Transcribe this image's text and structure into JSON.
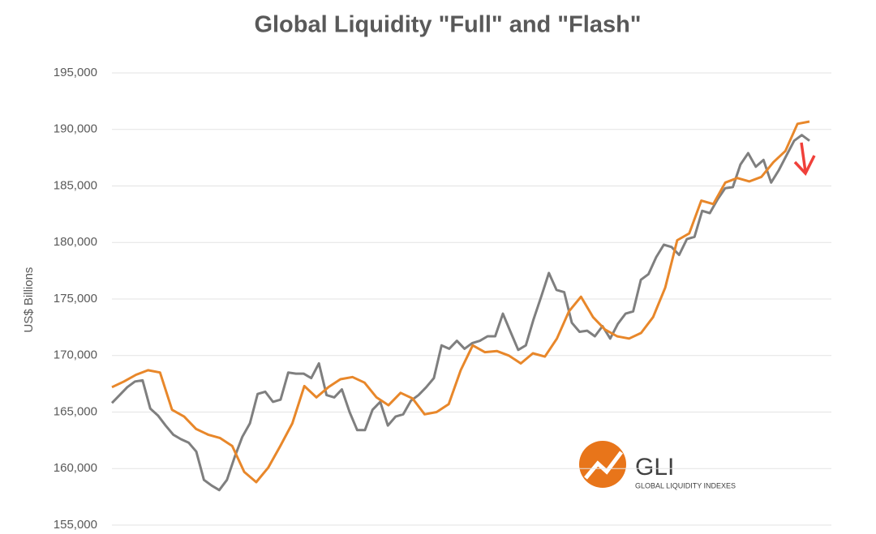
{
  "chart_data": {
    "type": "line",
    "title": "Global Liquidity \"Full\" and \"Flash\"",
    "y_label": "US$ Billions",
    "logo_text": "GLI",
    "logo_subtext": "GLOBAL LIQUIDITY INDEXES",
    "ylim": [
      155000,
      195000
    ],
    "yticks": [
      {
        "value": 155000,
        "label": "155,000"
      },
      {
        "value": 160000,
        "label": "160,000"
      },
      {
        "value": 165000,
        "label": "165,000"
      },
      {
        "value": 170000,
        "label": "170,000"
      },
      {
        "value": 175000,
        "label": "175,000"
      },
      {
        "value": 180000,
        "label": "180,000"
      },
      {
        "value": 185000,
        "label": "185,000"
      },
      {
        "value": 190000,
        "label": "190,000"
      },
      {
        "value": 195000,
        "label": "195,000"
      }
    ],
    "grid": true,
    "series": [
      {
        "color": "#7f7f7f",
        "values": [
          165800,
          166500,
          167200,
          167700,
          167800,
          165300,
          164700,
          163800,
          163000,
          162600,
          162300,
          161500,
          159000,
          158500,
          158100,
          159000,
          161000,
          162800,
          164000,
          166600,
          166800,
          165900,
          166100,
          168500,
          168400,
          168400,
          168000,
          169300,
          166500,
          166300,
          167000,
          165000,
          163400,
          163400,
          165200,
          165900,
          163800,
          164600,
          164800,
          166000,
          166500,
          167200,
          168000,
          170900,
          170600,
          171300,
          170600,
          171100,
          171300,
          171700,
          171700,
          173700,
          172100,
          170500,
          170900,
          173200,
          175200,
          177300,
          175800,
          175600,
          172900,
          172100,
          172200,
          171700,
          172600,
          171500,
          172800,
          173700,
          173900,
          176700,
          177200,
          178700,
          179800,
          179600,
          178900,
          180300,
          180500,
          182800,
          182600,
          183800,
          184800,
          184900,
          186900,
          187900,
          186700,
          187300,
          185300,
          186400,
          187700,
          189000,
          189500,
          189000
        ]
      },
      {
        "color": "#e8872a",
        "values": [
          167200,
          167700,
          168300,
          168700,
          168500,
          165200,
          164600,
          163500,
          163000,
          162700,
          162000,
          159700,
          158800,
          160100,
          162000,
          164000,
          167300,
          166300,
          167200,
          167900,
          168100,
          167600,
          166300,
          165600,
          166700,
          166200,
          164800,
          165000,
          165700,
          168700,
          170900,
          170300,
          170400,
          170000,
          169300,
          170200,
          169900,
          171500,
          173900,
          175200,
          173400,
          172300,
          171700,
          171500,
          172000,
          173400,
          176000,
          180200,
          180800,
          183700,
          183400,
          185300,
          185700,
          185400,
          185800,
          187100,
          188100,
          190500,
          190700
        ]
      }
    ]
  }
}
